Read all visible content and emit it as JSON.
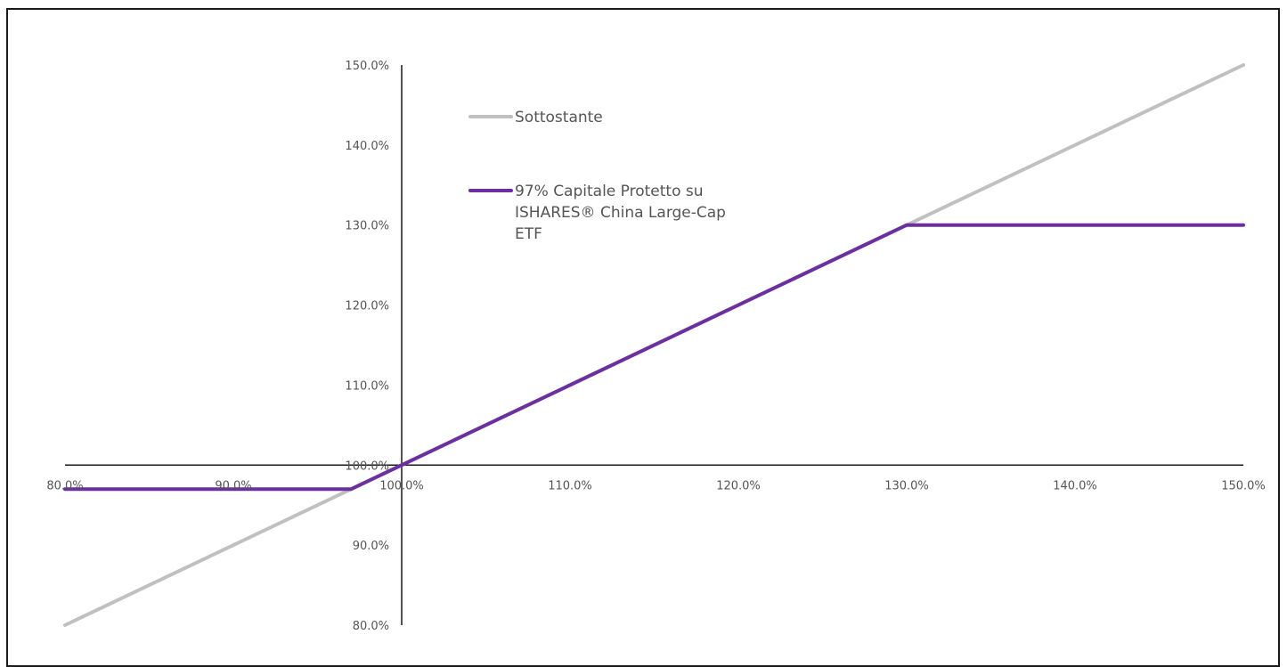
{
  "chart_data": {
    "type": "line",
    "x": [
      80,
      90,
      97,
      100,
      110,
      120,
      130,
      140,
      150
    ],
    "x_tick_labels": [
      "80.0%",
      "90.0%",
      "100.0%",
      "110.0%",
      "120.0%",
      "130.0%",
      "140.0%",
      "150.0%"
    ],
    "x_ticks": [
      80,
      90,
      100,
      110,
      120,
      130,
      140,
      150
    ],
    "y_tick_labels": [
      "150.0%",
      "140.0%",
      "130.0%",
      "120.0%",
      "110.0%",
      "100.0%",
      "90.0%",
      "80.0%"
    ],
    "y_ticks": [
      150,
      140,
      130,
      120,
      110,
      100,
      90,
      80
    ],
    "xlim": [
      80,
      150
    ],
    "ylim": [
      80,
      150
    ],
    "axis_cross": [
      100,
      100
    ],
    "grid": false,
    "legend_position": "top-left",
    "series": [
      {
        "name": "Sottostante",
        "name_lines": [
          "Sottostante"
        ],
        "color": "#c0c0c0",
        "points": [
          [
            80,
            80
          ],
          [
            150,
            150
          ]
        ]
      },
      {
        "name": "97% Capitale Protetto su ISHARES® China Large-Cap ETF",
        "name_lines": [
          "97% Capitale Protetto su",
          "ISHARES® China Large-Cap",
          "ETF"
        ],
        "color": "#6b2fa0",
        "points": [
          [
            80,
            97
          ],
          [
            97,
            97
          ],
          [
            130,
            130
          ],
          [
            150,
            130
          ]
        ]
      }
    ]
  }
}
